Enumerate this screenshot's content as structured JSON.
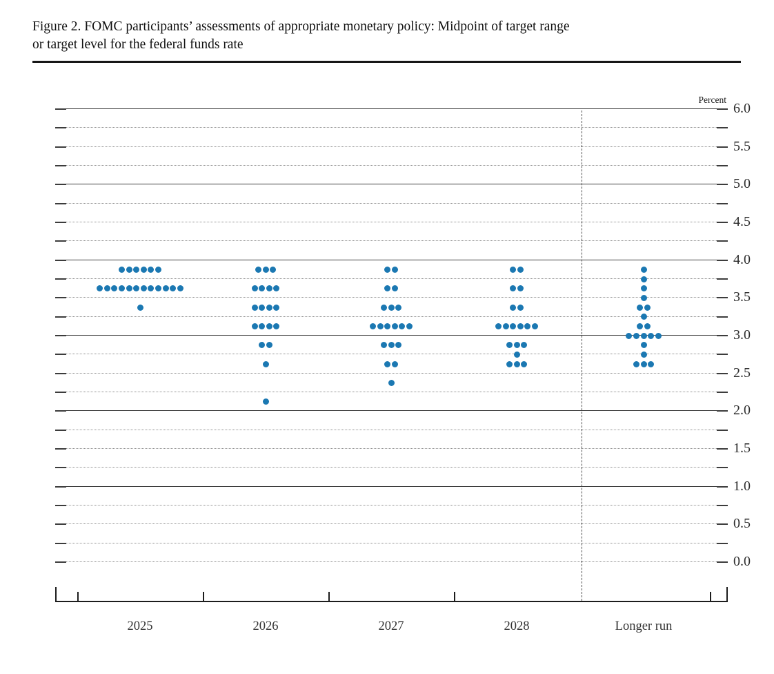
{
  "figure": {
    "title_line1": "Figure 2. FOMC participants’ assessments of appropriate monetary policy: Midpoint of target range",
    "title_line2": "or target level for the federal funds rate"
  },
  "chart_data": {
    "type": "scatter",
    "title": "Figure 2. FOMC participants’ assessments of appropriate monetary policy: Midpoint of target range or target level for the federal funds rate",
    "ylabel": "Percent",
    "ylim": [
      0.0,
      6.0
    ],
    "y_major_tick_step": 0.5,
    "y_minor_tick_step": 0.25,
    "y_tick_labels": [
      "6.0",
      "5.5",
      "5.0",
      "4.5",
      "4.0",
      "3.5",
      "3.0",
      "2.5",
      "2.0",
      "1.5",
      "1.0",
      "0.5",
      "0.0"
    ],
    "solid_gridline_values": [
      6.0,
      5.0,
      4.0,
      3.0,
      2.0,
      1.0
    ],
    "grid": "on",
    "legend_position": "none",
    "categories": [
      "2025",
      "2026",
      "2027",
      "2028",
      "Longer run"
    ],
    "separator_before_category": "Longer run",
    "dot_color": "#1b78b2",
    "participants_per_column": 19,
    "series": [
      {
        "category": "2025",
        "dots": [
          {
            "value": 3.875,
            "count": 6
          },
          {
            "value": 3.625,
            "count": 12
          },
          {
            "value": 3.375,
            "count": 1
          }
        ]
      },
      {
        "category": "2026",
        "dots": [
          {
            "value": 3.875,
            "count": 3
          },
          {
            "value": 3.625,
            "count": 4
          },
          {
            "value": 3.375,
            "count": 4
          },
          {
            "value": 3.125,
            "count": 4
          },
          {
            "value": 2.875,
            "count": 2
          },
          {
            "value": 2.625,
            "count": 1
          },
          {
            "value": 2.125,
            "count": 1
          }
        ]
      },
      {
        "category": "2027",
        "dots": [
          {
            "value": 3.875,
            "count": 2
          },
          {
            "value": 3.625,
            "count": 2
          },
          {
            "value": 3.375,
            "count": 3
          },
          {
            "value": 3.125,
            "count": 6
          },
          {
            "value": 2.875,
            "count": 3
          },
          {
            "value": 2.625,
            "count": 2
          },
          {
            "value": 2.375,
            "count": 1
          }
        ]
      },
      {
        "category": "2028",
        "dots": [
          {
            "value": 3.875,
            "count": 2
          },
          {
            "value": 3.625,
            "count": 2
          },
          {
            "value": 3.375,
            "count": 2
          },
          {
            "value": 3.125,
            "count": 6
          },
          {
            "value": 2.875,
            "count": 3
          },
          {
            "value": 2.75,
            "count": 1
          },
          {
            "value": 2.625,
            "count": 3
          }
        ]
      },
      {
        "category": "Longer run",
        "dots": [
          {
            "value": 3.875,
            "count": 1
          },
          {
            "value": 3.75,
            "count": 1
          },
          {
            "value": 3.625,
            "count": 1
          },
          {
            "value": 3.5,
            "count": 1
          },
          {
            "value": 3.375,
            "count": 2
          },
          {
            "value": 3.25,
            "count": 1
          },
          {
            "value": 3.125,
            "count": 2
          },
          {
            "value": 3.0,
            "count": 5
          },
          {
            "value": 2.875,
            "count": 1
          },
          {
            "value": 2.75,
            "count": 1
          },
          {
            "value": 2.625,
            "count": 3
          }
        ]
      }
    ]
  }
}
